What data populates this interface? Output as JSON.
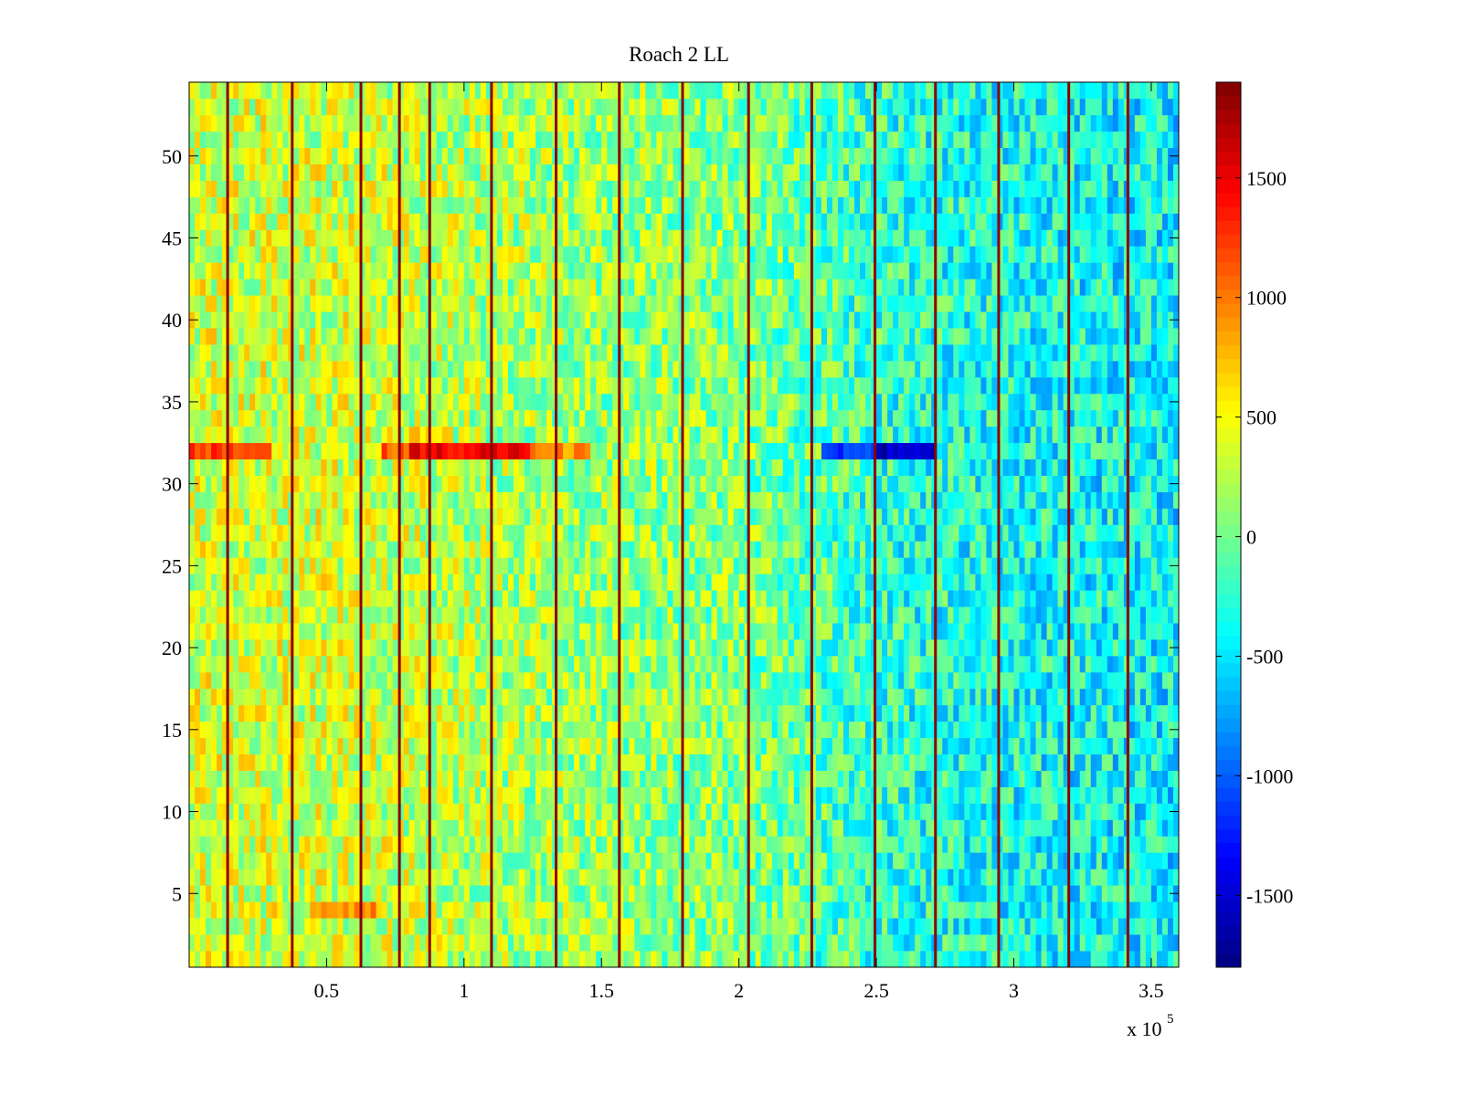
{
  "chart_data": {
    "type": "heatmap",
    "title": "Roach 2 LL",
    "xlabel": "",
    "ylabel": "",
    "x_exponent_label": "x 10",
    "x_exponent_power": "5",
    "xlim": [
      0,
      360000
    ],
    "ylim": [
      0.5,
      54.5
    ],
    "x_ticks": [
      50000,
      100000,
      150000,
      200000,
      250000,
      300000,
      350000
    ],
    "x_tick_labels": [
      "0.5",
      "1",
      "1.5",
      "2",
      "2.5",
      "3",
      "3.5"
    ],
    "y_ticks": [
      5,
      10,
      15,
      20,
      25,
      30,
      35,
      40,
      45,
      50
    ],
    "y_tick_labels": [
      "5",
      "10",
      "15",
      "20",
      "25",
      "30",
      "35",
      "40",
      "45",
      "50"
    ],
    "rows": 54,
    "colormap": "jet",
    "color_range": [
      -1800,
      1900
    ],
    "colorbar": {
      "ticks": [
        -1500,
        -1000,
        -500,
        0,
        500,
        1000,
        1500
      ],
      "tick_labels": [
        "-1500",
        "-1000",
        "-500",
        "0",
        "500",
        "1000",
        "1500"
      ]
    },
    "grid": false,
    "vertical_stripe_x": [
      14000,
      37500,
      62500,
      76500,
      87500,
      110000,
      133500,
      156500,
      179500,
      203500,
      226500,
      249500,
      271500,
      294500,
      320000,
      341500
    ],
    "vertical_stripe_value": 1850,
    "bands": [
      {
        "row": 32,
        "x_start": 0,
        "x_end": 30000,
        "value": 1200
      },
      {
        "row": 32,
        "x_start": 70000,
        "x_end": 90000,
        "value": 1100
      },
      {
        "row": 32,
        "x_start": 80000,
        "x_end": 125000,
        "value": 1500
      },
      {
        "row": 32,
        "x_start": 125000,
        "x_end": 145000,
        "value": 900
      },
      {
        "row": 32,
        "x_start": 230000,
        "x_end": 250000,
        "value": -1100
      },
      {
        "row": 32,
        "x_start": 250000,
        "x_end": 272000,
        "value": -1550
      },
      {
        "row": 33,
        "x_start": 80000,
        "x_end": 95000,
        "value": 700
      },
      {
        "row": 4,
        "x_start": 45000,
        "x_end": 67000,
        "value": 900
      }
    ],
    "background_trend": {
      "x": [
        0,
        60000,
        120000,
        200000,
        260000,
        360000
      ],
      "value": [
        350,
        330,
        200,
        60,
        -280,
        -430
      ]
    }
  }
}
